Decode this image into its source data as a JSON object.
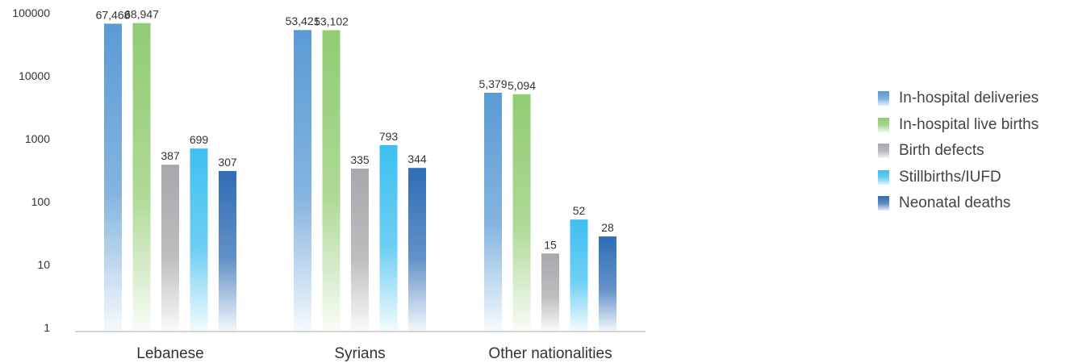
{
  "chart_data": {
    "type": "bar",
    "scale": "log",
    "ylim": [
      1,
      100000
    ],
    "yticks": [
      "1",
      "10",
      "100",
      "1000",
      "10000",
      "100000"
    ],
    "categories": [
      "Lebanese",
      "Syrians",
      "Other nationalities"
    ],
    "series": [
      {
        "name": "In-hospital deliveries",
        "color": "#5b9bd5",
        "values": [
          67468,
          53421,
          5379
        ],
        "labels": [
          "67,468",
          "53,421",
          "5,379"
        ]
      },
      {
        "name": "In-hospital live births",
        "color": "#92cc73",
        "values": [
          68947,
          53102,
          5094
        ],
        "labels": [
          "68,947",
          "53,102",
          "5,094"
        ]
      },
      {
        "name": "Birth defects",
        "color": "#a6a8ab",
        "values": [
          387,
          335,
          15
        ],
        "labels": [
          "387",
          "335",
          "15"
        ]
      },
      {
        "name": "Stillbirths/IUFD",
        "color": "#3ebff0",
        "values": [
          699,
          793,
          52
        ],
        "labels": [
          "699",
          "793",
          "52"
        ]
      },
      {
        "name": "Neonatal deaths",
        "color": "#2f6db5",
        "values": [
          307,
          344,
          28
        ],
        "labels": [
          "307",
          "344",
          "28"
        ]
      }
    ],
    "legend_position": "right",
    "grid": false
  }
}
